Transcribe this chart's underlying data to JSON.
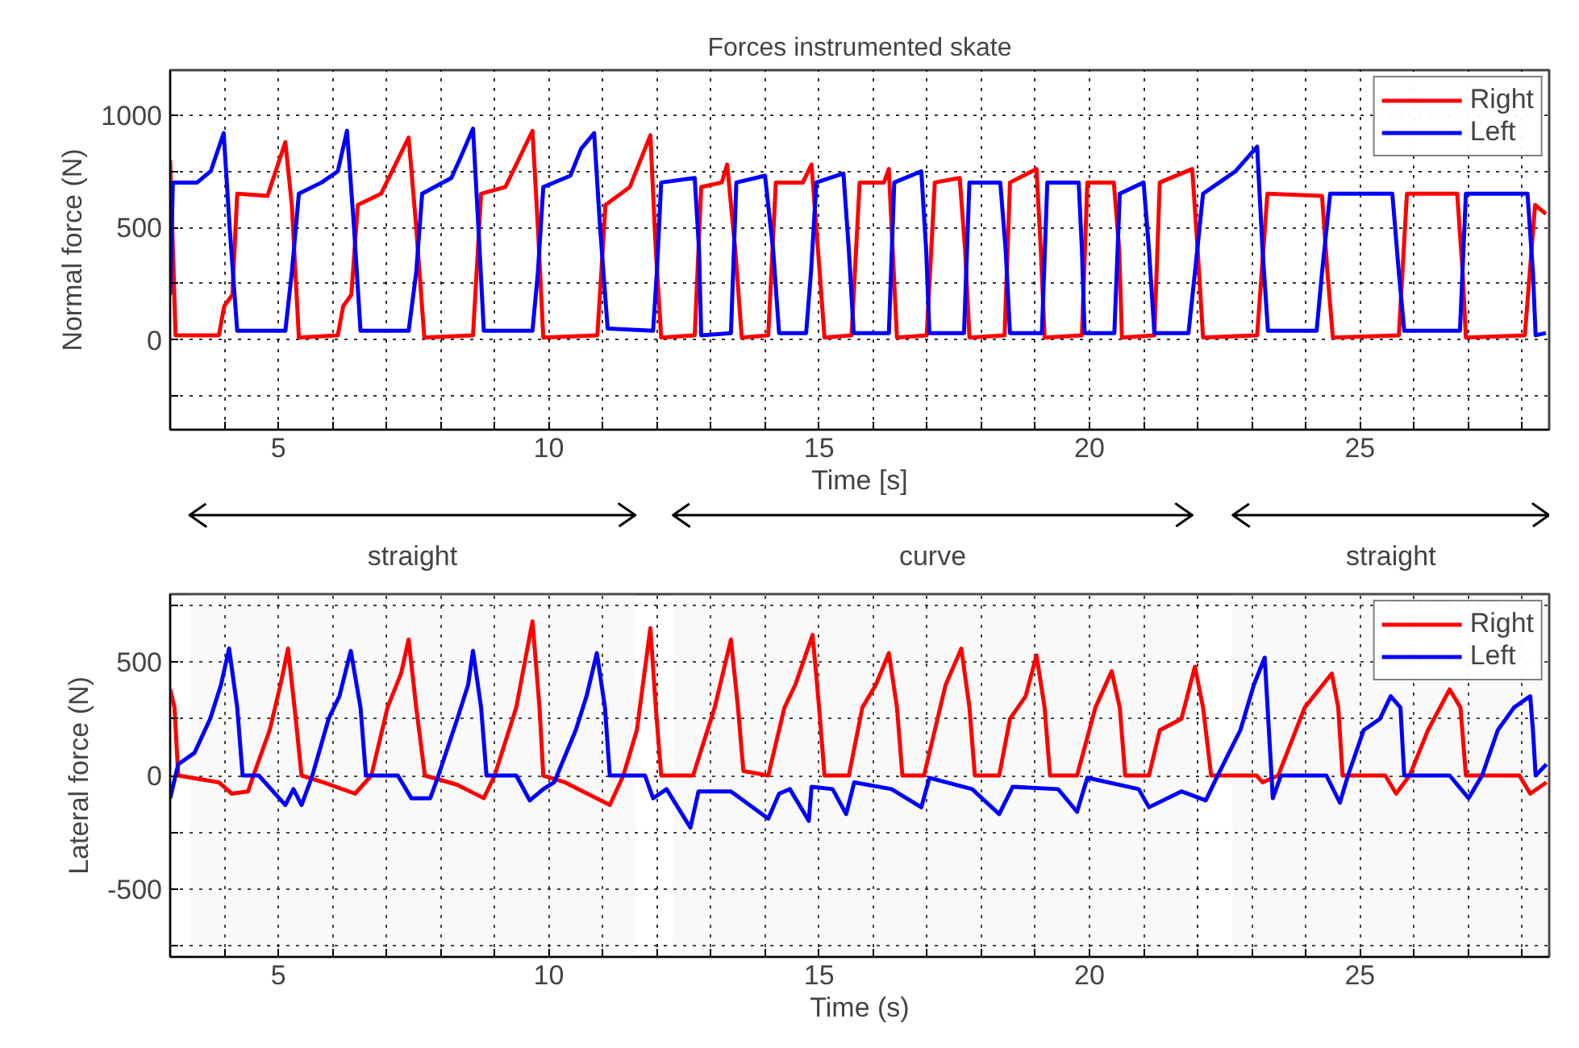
{
  "chart_data": [
    {
      "type": "line",
      "title": "Forces instrumented skate",
      "xlabel": "Time [s]",
      "ylabel": "Normal force (N)",
      "xlim": [
        3,
        28.5
      ],
      "ylim": [
        -400,
        1200
      ],
      "xticks": [
        {
          "value": 4,
          "label": null
        },
        5,
        {
          "value": 6,
          "label": null
        },
        {
          "value": 7,
          "label": null
        },
        {
          "value": 8,
          "label": null
        },
        {
          "value": 9,
          "label": null
        },
        10,
        {
          "value": 11,
          "label": null
        },
        {
          "value": 12,
          "label": null
        },
        {
          "value": 13,
          "label": null
        },
        {
          "value": 14,
          "label": null
        },
        15,
        {
          "value": 16,
          "label": null
        },
        {
          "value": 17,
          "label": null
        },
        {
          "value": 18,
          "label": null
        },
        {
          "value": 19,
          "label": null
        },
        20,
        {
          "value": 21,
          "label": null
        },
        {
          "value": 22,
          "label": null
        },
        {
          "value": 23,
          "label": null
        },
        {
          "value": 24,
          "label": null
        },
        25,
        {
          "value": 26,
          "label": null
        },
        {
          "value": 27,
          "label": null
        },
        {
          "value": 28,
          "label": null
        }
      ],
      "yticks": [
        {
          "value": -250,
          "label": null
        },
        0,
        {
          "value": 250,
          "label": null
        },
        500,
        {
          "value": 750,
          "label": null
        },
        1000
      ],
      "grid": true,
      "legend": "top right",
      "line_style": "solid",
      "series": [
        {
          "name": "Right",
          "color": "#ff0000",
          "x": [
            3.0,
            3.1,
            3.9,
            4.0,
            4.15,
            4.24,
            4.8,
            5.13,
            5.25,
            5.38,
            6.1,
            6.2,
            6.35,
            6.47,
            6.9,
            7.41,
            7.55,
            7.7,
            8.6,
            8.75,
            9.2,
            9.7,
            9.8,
            9.9,
            10.9,
            11.05,
            11.5,
            11.88,
            11.98,
            12.08,
            12.7,
            12.82,
            13.2,
            13.3,
            13.45,
            13.57,
            14.06,
            14.2,
            14.7,
            14.86,
            14.98,
            15.1,
            15.6,
            15.75,
            16.2,
            16.29,
            16.36,
            16.44,
            16.99,
            17.14,
            17.6,
            17.7,
            17.78,
            18.43,
            18.53,
            19.02,
            19.1,
            19.17,
            19.86,
            19.96,
            20.45,
            20.55,
            20.6,
            21.2,
            21.3,
            21.9,
            22.0,
            22.1,
            23.1,
            23.29,
            24.3,
            24.4,
            24.5,
            25.72,
            25.87,
            26.8,
            26.9,
            26.96,
            28.05,
            28.24,
            28.44
          ],
          "values": [
            800,
            20,
            20,
            150,
            200,
            650,
            640,
            880,
            600,
            10,
            20,
            150,
            200,
            600,
            650,
            900,
            500,
            10,
            20,
            650,
            680,
            930,
            500,
            10,
            20,
            600,
            680,
            910,
            400,
            10,
            20,
            680,
            700,
            780,
            400,
            10,
            20,
            700,
            700,
            780,
            400,
            10,
            20,
            700,
            700,
            760,
            400,
            10,
            20,
            700,
            720,
            400,
            10,
            20,
            700,
            760,
            400,
            10,
            20,
            700,
            700,
            400,
            10,
            20,
            700,
            760,
            400,
            10,
            20,
            650,
            640,
            300,
            10,
            20,
            650,
            650,
            300,
            10,
            20,
            600,
            560
          ]
        },
        {
          "name": "Left",
          "color": "#0000ff",
          "x": [
            3.0,
            3.05,
            3.5,
            3.75,
            3.99,
            4.1,
            4.24,
            5.13,
            5.25,
            5.38,
            5.8,
            6.1,
            6.27,
            6.4,
            6.52,
            7.41,
            7.55,
            7.66,
            8.2,
            8.35,
            8.6,
            8.7,
            8.8,
            9.7,
            9.8,
            9.9,
            10.4,
            10.6,
            10.84,
            10.95,
            11.09,
            11.93,
            12.0,
            12.08,
            12.7,
            12.78,
            12.82,
            13.37,
            13.47,
            14.0,
            14.15,
            14.26,
            14.76,
            14.85,
            14.95,
            15.45,
            15.55,
            15.64,
            16.29,
            16.39,
            16.89,
            16.98,
            17.04,
            17.68,
            17.78,
            18.35,
            18.45,
            18.53,
            19.12,
            19.22,
            19.8,
            19.86,
            19.91,
            20.46,
            20.56,
            21.0,
            21.1,
            21.2,
            21.83,
            21.95,
            22.1,
            22.4,
            22.7,
            23.1,
            23.2,
            23.3,
            24.2,
            24.3,
            24.45,
            25.6,
            25.72,
            25.82,
            26.85,
            26.96,
            28.1,
            28.2,
            28.25,
            28.44
          ],
          "values": [
            200,
            700,
            700,
            750,
            920,
            500,
            40,
            40,
            300,
            650,
            700,
            750,
            930,
            500,
            40,
            40,
            300,
            650,
            720,
            800,
            940,
            500,
            40,
            40,
            300,
            680,
            730,
            850,
            920,
            500,
            50,
            40,
            300,
            700,
            720,
            400,
            20,
            30,
            700,
            730,
            400,
            30,
            30,
            300,
            700,
            740,
            400,
            30,
            30,
            700,
            750,
            400,
            30,
            30,
            700,
            700,
            400,
            30,
            30,
            700,
            700,
            400,
            30,
            30,
            650,
            700,
            400,
            30,
            30,
            300,
            650,
            700,
            750,
            860,
            400,
            40,
            40,
            300,
            650,
            650,
            300,
            40,
            40,
            650,
            650,
            300,
            20,
            30
          ]
        }
      ]
    },
    {
      "type": "line",
      "xlabel": "Time (s)",
      "ylabel": "Lateral force (N)",
      "xlim": [
        3,
        28.5
      ],
      "ylim": [
        -800,
        800
      ],
      "xticks": [
        {
          "value": 4,
          "label": null
        },
        5,
        {
          "value": 6,
          "label": null
        },
        {
          "value": 7,
          "label": null
        },
        {
          "value": 8,
          "label": null
        },
        {
          "value": 9,
          "label": null
        },
        10,
        {
          "value": 11,
          "label": null
        },
        {
          "value": 12,
          "label": null
        },
        {
          "value": 13,
          "label": null
        },
        {
          "value": 14,
          "label": null
        },
        15,
        {
          "value": 16,
          "label": null
        },
        {
          "value": 17,
          "label": null
        },
        {
          "value": 18,
          "label": null
        },
        {
          "value": 19,
          "label": null
        },
        20,
        {
          "value": 21,
          "label": null
        },
        {
          "value": 22,
          "label": null
        },
        {
          "value": 23,
          "label": null
        },
        {
          "value": 24,
          "label": null
        },
        25,
        {
          "value": 26,
          "label": null
        },
        {
          "value": 27,
          "label": null
        },
        {
          "value": 28,
          "label": null
        }
      ],
      "yticks": [
        {
          "value": -750,
          "label": null
        },
        -500,
        {
          "value": -250,
          "label": null
        },
        0,
        {
          "value": 250,
          "label": null
        },
        500,
        {
          "value": 750,
          "label": null
        }
      ],
      "grid": true,
      "legend": "top right",
      "line_style": "solid",
      "bands": [
        {
          "axis": "x",
          "from": 3.36,
          "to": 11.6,
          "label": "straight"
        },
        {
          "axis": "x",
          "from": 12.3,
          "to": 21.9,
          "label": "curve"
        },
        {
          "axis": "x",
          "from": 22.65,
          "to": 28.5,
          "label": "straight"
        }
      ],
      "series": [
        {
          "name": "Right",
          "color": "#ff0000",
          "x": [
            3.0,
            3.08,
            3.15,
            3.9,
            4.14,
            4.44,
            4.54,
            4.84,
            5.04,
            5.18,
            5.3,
            5.43,
            5.83,
            6.42,
            6.72,
            7.02,
            7.27,
            7.41,
            7.55,
            7.71,
            8.3,
            8.8,
            9.0,
            9.4,
            9.7,
            9.83,
            9.9,
            10.3,
            11.13,
            11.38,
            11.63,
            11.88,
            11.98,
            12.08,
            12.67,
            13.07,
            13.37,
            13.5,
            13.6,
            14.06,
            14.36,
            14.56,
            14.88,
            15.0,
            15.1,
            15.55,
            15.8,
            16.05,
            16.29,
            16.44,
            16.54,
            16.94,
            17.34,
            17.63,
            17.78,
            17.88,
            18.33,
            18.53,
            18.82,
            19.02,
            19.17,
            19.27,
            19.77,
            20.11,
            20.41,
            20.56,
            20.66,
            21.1,
            21.3,
            21.7,
            21.95,
            22.1,
            22.25,
            23.09,
            23.2,
            23.49,
            23.98,
            24.48,
            24.6,
            24.68,
            25.47,
            25.67,
            25.92,
            26.26,
            26.66,
            26.86,
            26.96,
            27.95,
            28.15,
            28.45
          ],
          "values": [
            380,
            300,
            0,
            -30,
            -80,
            -70,
            0,
            200,
            400,
            560,
            300,
            0,
            -30,
            -80,
            0,
            300,
            450,
            600,
            300,
            0,
            -40,
            -100,
            0,
            300,
            680,
            300,
            0,
            -30,
            -130,
            0,
            200,
            650,
            300,
            0,
            0,
            300,
            600,
            300,
            20,
            0,
            300,
            400,
            620,
            300,
            0,
            0,
            300,
            400,
            540,
            300,
            0,
            0,
            400,
            560,
            300,
            0,
            0,
            250,
            350,
            530,
            300,
            0,
            0,
            300,
            460,
            300,
            0,
            0,
            200,
            250,
            480,
            300,
            0,
            0,
            -30,
            0,
            300,
            450,
            300,
            0,
            0,
            -80,
            0,
            200,
            380,
            300,
            0,
            0,
            -80,
            -30
          ]
        },
        {
          "name": "Left",
          "color": "#0000ff",
          "x": [
            3.0,
            3.15,
            3.45,
            3.74,
            3.94,
            4.09,
            4.24,
            4.34,
            4.64,
            5.13,
            5.28,
            5.43,
            5.63,
            5.93,
            6.13,
            6.34,
            6.52,
            6.62,
            7.21,
            7.46,
            7.81,
            7.96,
            8.31,
            8.51,
            8.6,
            8.75,
            8.85,
            9.4,
            9.65,
            9.9,
            10.1,
            10.5,
            10.7,
            10.89,
            11.04,
            11.13,
            11.78,
            11.93,
            12.18,
            12.62,
            12.77,
            13.37,
            14.06,
            14.26,
            14.46,
            14.81,
            14.86,
            15.25,
            15.5,
            15.65,
            16.34,
            16.89,
            17.04,
            17.83,
            18.33,
            18.58,
            19.42,
            19.77,
            19.96,
            20.91,
            21.1,
            21.7,
            22.15,
            22.35,
            22.79,
            23.04,
            23.24,
            23.39,
            23.54,
            24.38,
            24.63,
            24.78,
            25.07,
            25.37,
            25.57,
            25.75,
            25.82,
            26.66,
            27.01,
            27.26,
            27.55,
            27.85,
            28.15,
            28.2,
            28.25,
            28.45
          ],
          "values": [
            -100,
            50,
            100,
            250,
            400,
            560,
            300,
            0,
            0,
            -130,
            -60,
            -130,
            0,
            250,
            350,
            550,
            300,
            0,
            0,
            -100,
            -100,
            0,
            250,
            400,
            550,
            300,
            0,
            0,
            -110,
            -60,
            -30,
            200,
            350,
            540,
            300,
            0,
            0,
            -100,
            -60,
            -230,
            -70,
            -70,
            -190,
            -80,
            -60,
            -200,
            -50,
            -60,
            -170,
            -30,
            -60,
            -140,
            -10,
            -60,
            -170,
            -50,
            -60,
            -160,
            -10,
            -60,
            -140,
            -70,
            -110,
            -10,
            200,
            400,
            520,
            -100,
            0,
            0,
            -120,
            0,
            200,
            250,
            350,
            300,
            0,
            0,
            -100,
            0,
            200,
            300,
            350,
            200,
            0,
            50
          ]
        }
      ]
    }
  ]
}
